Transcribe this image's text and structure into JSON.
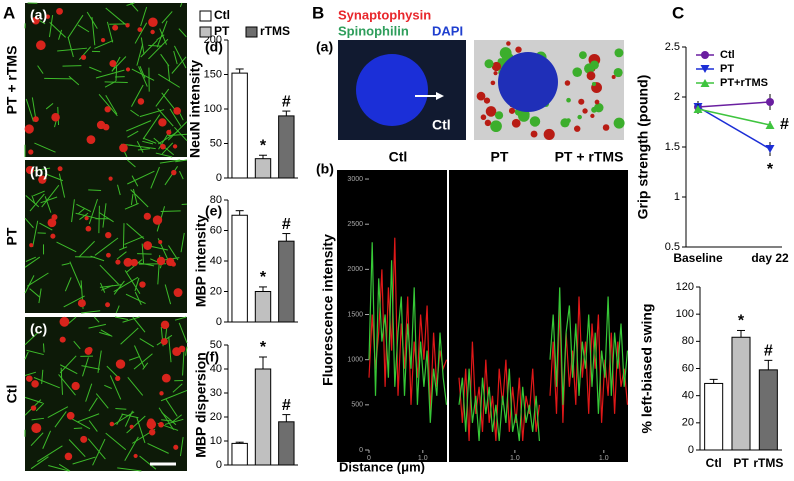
{
  "panels": {
    "A": {
      "label": "A",
      "rows": [
        {
          "tag": "(a)",
          "side": "PT + rTMS"
        },
        {
          "tag": "(b)",
          "side": "PT"
        },
        {
          "tag": "(c)",
          "side": "Ctl"
        }
      ]
    },
    "B": {
      "label": "B",
      "sub_a": "(a)",
      "sub_b": "(b)",
      "stains": [
        "Synaptophysin",
        "Spinophilin",
        "DAPI"
      ],
      "stain_colors": [
        "#e8262b",
        "#2e9e5b",
        "#1f3fcf"
      ],
      "image_text": "Ctl"
    },
    "C": {
      "label": "C"
    }
  },
  "chart_data": [
    {
      "type": "bar",
      "tag": "(d)",
      "y_label": "NeuN intensity",
      "categories": [
        "Ctl",
        "PT",
        "rTMS"
      ],
      "legend": "top",
      "values": [
        152,
        28,
        90
      ],
      "errors": [
        6,
        5,
        7
      ],
      "colors": [
        "#ffffff",
        "#c0c0c0",
        "#6e6e6e"
      ],
      "annotations": [
        {
          "index": 1,
          "text": "*"
        },
        {
          "index": 2,
          "text": "#"
        }
      ],
      "ylim": [
        0,
        200
      ],
      "yticks": [
        0,
        50,
        100,
        150,
        200
      ]
    },
    {
      "type": "bar",
      "tag": "(e)",
      "y_label": "MBP intensity",
      "values": [
        70,
        20,
        53
      ],
      "errors": [
        3,
        3,
        5
      ],
      "colors": [
        "#ffffff",
        "#c0c0c0",
        "#6e6e6e"
      ],
      "annotations": [
        {
          "index": 1,
          "text": "*"
        },
        {
          "index": 2,
          "text": "#"
        }
      ],
      "ylim": [
        0,
        80
      ],
      "yticks": [
        0,
        20,
        40,
        60,
        80
      ]
    },
    {
      "type": "bar",
      "tag": "(f)",
      "y_label": "MBP dispersion",
      "values": [
        9,
        40,
        18
      ],
      "errors": [
        0.5,
        5,
        3
      ],
      "colors": [
        "#ffffff",
        "#c0c0c0",
        "#6e6e6e"
      ],
      "annotations": [
        {
          "index": 1,
          "text": "*"
        },
        {
          "index": 2,
          "text": "#"
        }
      ],
      "ylim": [
        0,
        50
      ],
      "yticks": [
        0,
        10,
        20,
        30,
        40,
        50
      ]
    },
    {
      "type": "line",
      "title": "Ctl",
      "y_label": "Fluorescence intensity",
      "x_label": "Distance (μm)",
      "background": "#000000",
      "x": [
        0,
        0.06,
        0.12,
        0.18,
        0.24,
        0.3,
        0.36,
        0.42,
        0.48,
        0.54,
        0.6,
        0.66,
        0.72,
        0.78,
        0.84,
        0.9,
        0.96,
        1.02,
        1.08,
        1.14,
        1.2,
        1.26,
        1.32,
        1.38,
        1.44
      ],
      "xlim": [
        0,
        1.45
      ],
      "xticks": [
        0,
        {
          "value": 1,
          "label": "1.0"
        }
      ],
      "ylim": [
        0,
        3100
      ],
      "yticks": [
        0,
        500,
        1000,
        1500,
        2000,
        2500,
        3000
      ],
      "series": [
        {
          "color": "#e01818",
          "values": [
            800,
            1500,
            900,
            1300,
            2000,
            700,
            1800,
            1100,
            2350,
            600,
            1400,
            900,
            1700,
            500,
            1200,
            800,
            1500,
            1000,
            1600,
            400,
            1300,
            700,
            1100,
            900,
            1000
          ]
        },
        {
          "color": "#37c837",
          "values": [
            1000,
            2300,
            600,
            1900,
            1200,
            1500,
            800,
            2100,
            700,
            1300,
            1700,
            600,
            1400,
            900,
            1800,
            500,
            1200,
            700,
            1100,
            300,
            900,
            600,
            1300,
            800,
            500
          ]
        }
      ]
    },
    {
      "type": "line",
      "title": "PT",
      "background": "#000000",
      "x": [
        0,
        0.06,
        0.12,
        0.18,
        0.24,
        0.3,
        0.36,
        0.42,
        0.48,
        0.54,
        0.6,
        0.66,
        0.72,
        0.78,
        0.84,
        0.9,
        0.96,
        1.02,
        1.08,
        1.14,
        1.2,
        1.26,
        1.32,
        1.38,
        1.44
      ],
      "xlim": [
        0,
        1.45
      ],
      "xticks": [
        {
          "value": 1,
          "label": "1.0"
        }
      ],
      "ylim": [
        0,
        3100
      ],
      "series": [
        {
          "color": "#e01818",
          "values": [
            800,
            300,
            900,
            100,
            1200,
            400,
            700,
            200,
            1000,
            300,
            600,
            100,
            900,
            500,
            1000,
            200,
            700,
            300,
            800,
            100,
            600,
            400,
            900,
            200,
            500
          ]
        },
        {
          "color": "#37c837",
          "values": [
            500,
            800,
            200,
            900,
            300,
            600,
            100,
            800,
            400,
            700,
            200,
            500,
            100,
            600,
            300,
            900,
            200,
            400,
            100,
            700,
            300,
            500,
            200,
            600,
            100
          ]
        }
      ]
    },
    {
      "type": "line",
      "title": "PT + rTMS",
      "background": "#000000",
      "x": [
        0,
        0.06,
        0.12,
        0.18,
        0.24,
        0.3,
        0.36,
        0.42,
        0.48,
        0.54,
        0.6,
        0.66,
        0.72,
        0.78,
        0.84,
        0.9,
        0.96,
        1.02,
        1.08,
        1.14,
        1.2,
        1.26,
        1.32,
        1.38,
        1.44
      ],
      "xlim": [
        0,
        1.45
      ],
      "xticks": [
        {
          "value": 1,
          "label": "1.0"
        }
      ],
      "ylim": [
        0,
        3100
      ],
      "series": [
        {
          "color": "#e01818",
          "values": [
            600,
            1200,
            400,
            1600,
            300,
            1300,
            700,
            1100,
            500,
            1700,
            800,
            1200,
            400,
            1400,
            900,
            1500,
            300,
            1000,
            600,
            1300,
            400,
            1200,
            700,
            900,
            500
          ]
        },
        {
          "color": "#37c837",
          "values": [
            1000,
            1500,
            700,
            1800,
            500,
            1300,
            1600,
            800,
            1400,
            600,
            1200,
            900,
            1500,
            700,
            1300,
            400,
            1100,
            800,
            1700,
            600,
            1300,
            900,
            1400,
            700,
            1100
          ]
        }
      ]
    },
    {
      "type": "line",
      "y_label": "Grip strength (pound)",
      "categories": [
        "Baseline",
        "day 22"
      ],
      "legend": "top-right",
      "ylim": [
        0.5,
        2.5
      ],
      "yticks": [
        0.5,
        1,
        1.5,
        2,
        2.5
      ],
      "series": [
        {
          "name": "Ctl",
          "color": "#6a1fa0",
          "marker": "circle",
          "values": [
            1.9,
            1.95
          ],
          "errors": [
            0.06,
            0.08
          ]
        },
        {
          "name": "PT",
          "color": "#1c2ed6",
          "marker": "triangle-down",
          "values": [
            1.9,
            1.48
          ],
          "errors": [
            0.06,
            0.07
          ]
        },
        {
          "name": "PT+rTMS",
          "color": "#3fc43f",
          "marker": "triangle-up",
          "values": [
            1.88,
            1.72
          ],
          "errors": [
            0.05,
            0.04
          ]
        }
      ],
      "annotations": [
        {
          "series": 2,
          "index": 1,
          "text": "#",
          "position": "right"
        },
        {
          "series": 1,
          "index": 1,
          "text": "*",
          "position": "below"
        }
      ]
    },
    {
      "type": "bar",
      "y_label": "% left-biased swing",
      "categories": [
        "Ctl",
        "PT",
        "rTMS"
      ],
      "values": [
        49,
        83,
        59
      ],
      "errors": [
        3,
        5,
        7
      ],
      "colors": [
        "#ffffff",
        "#c0c0c0",
        "#6e6e6e"
      ],
      "annotations": [
        {
          "index": 1,
          "text": "*"
        },
        {
          "index": 2,
          "text": "#"
        }
      ],
      "ylim": [
        0,
        120
      ],
      "yticks": [
        0,
        20,
        40,
        60,
        80,
        100,
        120
      ]
    }
  ]
}
